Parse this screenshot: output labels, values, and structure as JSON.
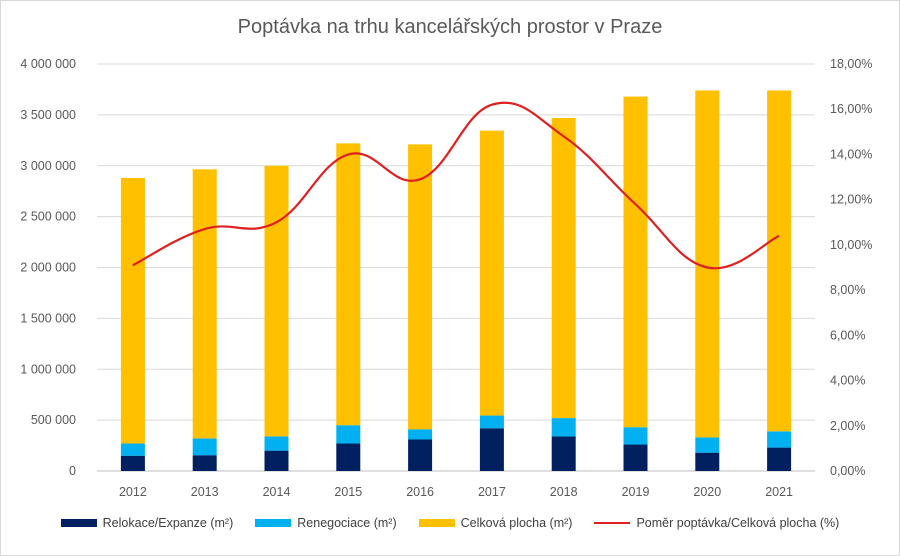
{
  "chart_data": {
    "type": "bar",
    "title": "Poptávka na trhu kancelářských prostor v Praze",
    "categories": [
      "2012",
      "2013",
      "2014",
      "2015",
      "2016",
      "2017",
      "2018",
      "2019",
      "2020",
      "2021"
    ],
    "stacked": true,
    "series": [
      {
        "name": "Relokace/Expanze (m²)",
        "type": "bar",
        "axis": "left",
        "color": "#002060",
        "values": [
          150000,
          155000,
          200000,
          270000,
          310000,
          420000,
          340000,
          260000,
          180000,
          230000
        ]
      },
      {
        "name": "Renegociace (m²)",
        "type": "bar",
        "axis": "left",
        "color": "#00b0f0",
        "values": [
          120000,
          165000,
          140000,
          180000,
          100000,
          125000,
          180000,
          170000,
          150000,
          160000
        ]
      },
      {
        "name": "Celková plocha (m²)",
        "type": "bar",
        "axis": "left",
        "color": "#ffc000",
        "values": [
          2610000,
          2645000,
          2660000,
          2770000,
          2800000,
          2800000,
          2950000,
          3250000,
          3410000,
          3350000
        ]
      },
      {
        "name": "Poměr poptávka/Celková plocha (%)",
        "type": "line",
        "axis": "right",
        "color": "#e02020",
        "values": [
          9.1,
          10.7,
          11.0,
          14.0,
          12.9,
          16.2,
          14.8,
          11.8,
          9.0,
          10.4
        ]
      }
    ],
    "ylim": [
      0,
      4000000
    ],
    "y_ticks": [
      "0",
      "500 000",
      "1 000 000",
      "1 500 000",
      "2 000 000",
      "2 500 000",
      "3 000 000",
      "3 500 000",
      "4 000 000"
    ],
    "y2lim": [
      0,
      18
    ],
    "y2_ticks": [
      "0,00%",
      "2,00%",
      "4,00%",
      "6,00%",
      "8,00%",
      "10,00%",
      "12,00%",
      "14,00%",
      "16,00%",
      "18,00%"
    ],
    "grid": true,
    "legend": "bottom"
  }
}
